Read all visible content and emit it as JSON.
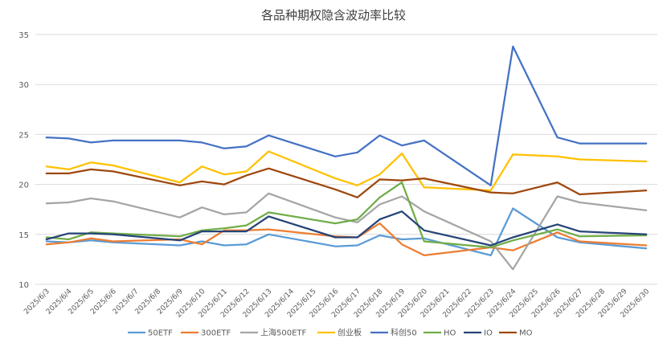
{
  "chart_data": {
    "type": "line",
    "title": "各品种期权隐含波动率比较",
    "xlabel": "",
    "ylabel": "",
    "ylim": [
      10,
      35
    ],
    "yticks": [
      10,
      15,
      20,
      25,
      30,
      35
    ],
    "grid": true,
    "legend_position": "bottom",
    "categories": [
      "2025/6/3",
      "2025/6/4",
      "2025/6/5",
      "2025/6/6",
      "2025/6/7",
      "2025/6/8",
      "2025/6/9",
      "2025/6/10",
      "2025/6/11",
      "2025/6/12",
      "2025/6/13",
      "2025/6/14",
      "2025/6/15",
      "2025/6/16",
      "2025/6/17",
      "2025/6/18",
      "2025/6/19",
      "2025/6/20",
      "2025/6/21",
      "2025/6/22",
      "2025/6/23",
      "2025/6/24",
      "2025/6/25",
      "2025/6/26",
      "2025/6/27",
      "2025/6/28",
      "2025/6/29",
      "2025/6/30"
    ],
    "series": [
      {
        "name": "50ETF",
        "color": "#5B9BD5",
        "points": [
          [
            0,
            14.3
          ],
          [
            1,
            14.2
          ],
          [
            2,
            14.4
          ],
          [
            3,
            14.2
          ],
          [
            6,
            13.9
          ],
          [
            7,
            14.3
          ],
          [
            8,
            13.9
          ],
          [
            9,
            14.0
          ],
          [
            10,
            15.0
          ],
          [
            13,
            13.8
          ],
          [
            14,
            13.9
          ],
          [
            15,
            14.9
          ],
          [
            16,
            14.5
          ],
          [
            17,
            14.6
          ],
          [
            20,
            12.9
          ],
          [
            21,
            17.6
          ],
          [
            23,
            14.7
          ],
          [
            24,
            14.2
          ],
          [
            27,
            13.6
          ]
        ]
      },
      {
        "name": "300ETF",
        "color": "#ED7D31",
        "points": [
          [
            0,
            14.0
          ],
          [
            1,
            14.2
          ],
          [
            2,
            14.6
          ],
          [
            3,
            14.3
          ],
          [
            6,
            14.5
          ],
          [
            7,
            14.0
          ],
          [
            8,
            15.4
          ],
          [
            9,
            15.4
          ],
          [
            10,
            15.5
          ],
          [
            13,
            14.8
          ],
          [
            14,
            14.7
          ],
          [
            15,
            16.1
          ],
          [
            16,
            14.0
          ],
          [
            17,
            12.9
          ],
          [
            20,
            13.7
          ],
          [
            21,
            13.4
          ],
          [
            23,
            15.2
          ],
          [
            24,
            14.3
          ],
          [
            27,
            13.9
          ]
        ]
      },
      {
        "name": "上海500ETF",
        "color": "#A5A5A5",
        "points": [
          [
            0,
            18.1
          ],
          [
            1,
            18.2
          ],
          [
            2,
            18.6
          ],
          [
            3,
            18.3
          ],
          [
            6,
            16.7
          ],
          [
            7,
            17.7
          ],
          [
            8,
            17.0
          ],
          [
            9,
            17.2
          ],
          [
            10,
            19.1
          ],
          [
            13,
            16.7
          ],
          [
            14,
            16.2
          ],
          [
            15,
            18.0
          ],
          [
            16,
            18.8
          ],
          [
            17,
            17.3
          ],
          [
            20,
            14.3
          ],
          [
            21,
            11.5
          ],
          [
            23,
            18.8
          ],
          [
            24,
            18.2
          ],
          [
            27,
            17.4
          ]
        ]
      },
      {
        "name": "创业板",
        "color": "#FFC000",
        "points": [
          [
            0,
            21.8
          ],
          [
            1,
            21.5
          ],
          [
            2,
            22.2
          ],
          [
            3,
            21.9
          ],
          [
            6,
            20.2
          ],
          [
            7,
            21.8
          ],
          [
            8,
            21.0
          ],
          [
            9,
            21.3
          ],
          [
            10,
            23.3
          ],
          [
            13,
            20.6
          ],
          [
            14,
            19.9
          ],
          [
            15,
            21.0
          ],
          [
            16,
            23.1
          ],
          [
            17,
            19.7
          ],
          [
            20,
            19.4
          ],
          [
            21,
            23.0
          ],
          [
            23,
            22.8
          ],
          [
            24,
            22.5
          ],
          [
            27,
            22.3
          ]
        ]
      },
      {
        "name": "科创50",
        "color": "#4472C4",
        "points": [
          [
            0,
            24.7
          ],
          [
            1,
            24.6
          ],
          [
            2,
            24.2
          ],
          [
            3,
            24.4
          ],
          [
            6,
            24.4
          ],
          [
            7,
            24.2
          ],
          [
            8,
            23.6
          ],
          [
            9,
            23.8
          ],
          [
            10,
            24.9
          ],
          [
            13,
            22.8
          ],
          [
            14,
            23.2
          ],
          [
            15,
            24.9
          ],
          [
            16,
            23.9
          ],
          [
            17,
            24.4
          ],
          [
            20,
            19.9
          ],
          [
            21,
            33.8
          ],
          [
            23,
            24.7
          ],
          [
            24,
            24.1
          ],
          [
            27,
            24.1
          ]
        ]
      },
      {
        "name": "HO",
        "color": "#70AD47",
        "points": [
          [
            0,
            14.7
          ],
          [
            1,
            14.5
          ],
          [
            2,
            15.2
          ],
          [
            3,
            15.1
          ],
          [
            6,
            14.8
          ],
          [
            7,
            15.4
          ],
          [
            8,
            15.6
          ],
          [
            9,
            15.9
          ],
          [
            10,
            17.2
          ],
          [
            13,
            16.1
          ],
          [
            14,
            16.5
          ],
          [
            15,
            18.7
          ],
          [
            16,
            20.2
          ],
          [
            17,
            14.3
          ],
          [
            20,
            13.7
          ],
          [
            21,
            14.4
          ],
          [
            23,
            15.5
          ],
          [
            24,
            14.8
          ],
          [
            27,
            14.9
          ]
        ]
      },
      {
        "name": "IO",
        "color": "#264478",
        "points": [
          [
            0,
            14.5
          ],
          [
            1,
            15.1
          ],
          [
            2,
            15.1
          ],
          [
            3,
            15.0
          ],
          [
            6,
            14.4
          ],
          [
            7,
            15.3
          ],
          [
            8,
            15.3
          ],
          [
            9,
            15.3
          ],
          [
            10,
            16.8
          ],
          [
            13,
            14.7
          ],
          [
            14,
            14.7
          ],
          [
            15,
            16.5
          ],
          [
            16,
            17.3
          ],
          [
            17,
            15.4
          ],
          [
            20,
            13.9
          ],
          [
            21,
            14.7
          ],
          [
            23,
            16.0
          ],
          [
            24,
            15.3
          ],
          [
            27,
            15.0
          ]
        ]
      },
      {
        "name": "MO",
        "color": "#9E480E",
        "points": [
          [
            0,
            21.1
          ],
          [
            1,
            21.1
          ],
          [
            2,
            21.5
          ],
          [
            3,
            21.3
          ],
          [
            6,
            19.9
          ],
          [
            7,
            20.3
          ],
          [
            8,
            20.0
          ],
          [
            9,
            20.9
          ],
          [
            10,
            21.6
          ],
          [
            13,
            19.5
          ],
          [
            14,
            18.7
          ],
          [
            15,
            20.5
          ],
          [
            16,
            20.4
          ],
          [
            17,
            20.6
          ],
          [
            20,
            19.2
          ],
          [
            21,
            19.1
          ],
          [
            23,
            20.2
          ],
          [
            24,
            19.0
          ],
          [
            27,
            19.4
          ]
        ]
      }
    ]
  }
}
